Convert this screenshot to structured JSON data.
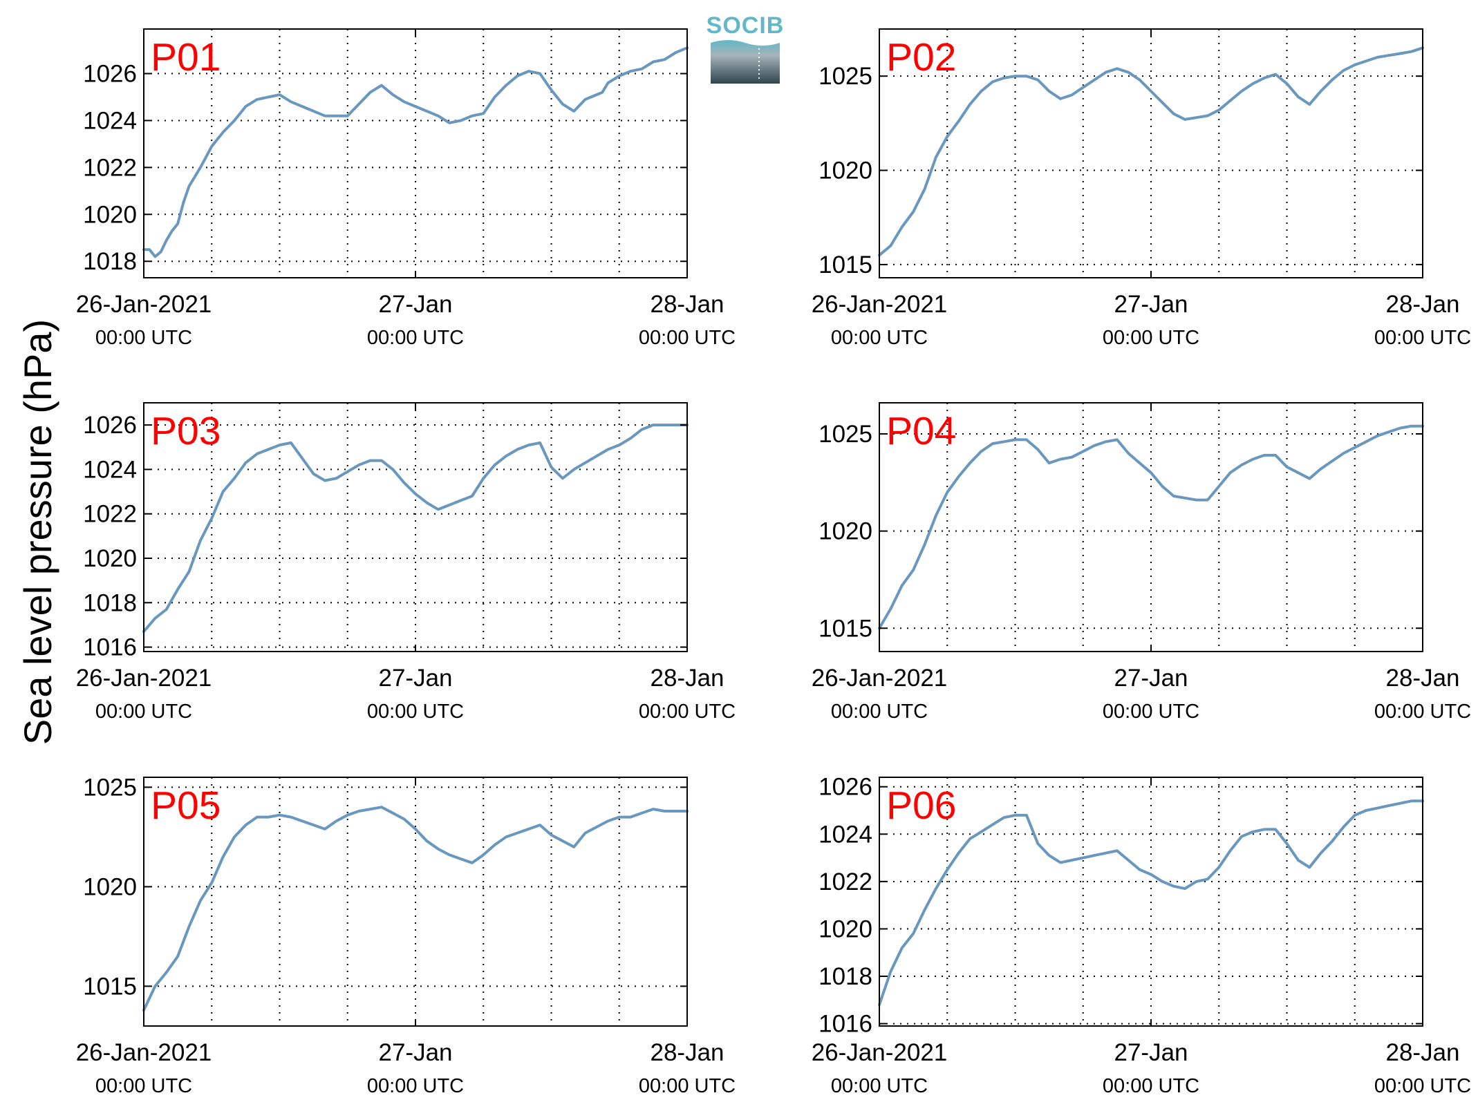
{
  "ylabel": "Sea level pressure (hPa)",
  "logo": {
    "text": "SOCIB",
    "colors": [
      "#62b8c8",
      "#2e4550"
    ]
  },
  "x_ticks": [
    {
      "main": "26-Jan-2021",
      "sub": "00:00 UTC"
    },
    {
      "main": "27-Jan",
      "sub": "00:00 UTC"
    },
    {
      "main": "28-Jan",
      "sub": "00:00 UTC"
    }
  ],
  "line_color": "#6a97bd",
  "label_color": "#ff0000",
  "chart_data": [
    {
      "type": "line",
      "title": "P01",
      "xlim": [
        0,
        48
      ],
      "ylim": [
        1017.3,
        1027.9
      ],
      "yticks": [
        1018,
        1020,
        1022,
        1024,
        1026
      ],
      "x": [
        0,
        0.5,
        1,
        1.5,
        2,
        2.5,
        3,
        3.5,
        4,
        4.5,
        5,
        6,
        7,
        8,
        9,
        10,
        11,
        12,
        13,
        14,
        15,
        16,
        17,
        18,
        19,
        20,
        21,
        22,
        23,
        24,
        25,
        26,
        27,
        28,
        29,
        30,
        31,
        32,
        33,
        34,
        35,
        36,
        37,
        38,
        39,
        40,
        40.5,
        41,
        42,
        43,
        44,
        45,
        46,
        47,
        48
      ],
      "values": [
        1018.5,
        1018.5,
        1018.2,
        1018.4,
        1018.9,
        1019.3,
        1019.6,
        1020.5,
        1021.2,
        1021.6,
        1022.0,
        1022.9,
        1023.5,
        1024.0,
        1024.6,
        1024.9,
        1025.0,
        1025.1,
        1024.8,
        1024.6,
        1024.4,
        1024.2,
        1024.2,
        1024.2,
        1024.7,
        1025.2,
        1025.5,
        1025.1,
        1024.8,
        1024.6,
        1024.4,
        1024.2,
        1023.9,
        1024.0,
        1024.2,
        1024.3,
        1025.0,
        1025.5,
        1025.9,
        1026.1,
        1026.0,
        1025.3,
        1024.7,
        1024.4,
        1024.9,
        1025.1,
        1025.2,
        1025.6,
        1025.9,
        1026.1,
        1026.2,
        1026.5,
        1026.6,
        1026.9,
        1027.1
      ]
    },
    {
      "type": "line",
      "title": "P02",
      "xlim": [
        0,
        48
      ],
      "ylim": [
        1014.3,
        1027.5
      ],
      "yticks": [
        1015,
        1020,
        1025
      ],
      "x": [
        0,
        1,
        2,
        3,
        4,
        5,
        6,
        7,
        8,
        9,
        10,
        11,
        12,
        13,
        14,
        15,
        16,
        17,
        18,
        19,
        20,
        21,
        22,
        23,
        24,
        25,
        26,
        27,
        28,
        29,
        30,
        31,
        32,
        33,
        34,
        35,
        36,
        37,
        38,
        39,
        40,
        41,
        42,
        43,
        44,
        45,
        46,
        47,
        48
      ],
      "values": [
        1015.5,
        1016.0,
        1017.0,
        1017.8,
        1019.0,
        1020.7,
        1021.8,
        1022.6,
        1023.5,
        1024.2,
        1024.7,
        1024.9,
        1025.0,
        1025.0,
        1024.8,
        1024.2,
        1023.8,
        1024.0,
        1024.4,
        1024.8,
        1025.2,
        1025.4,
        1025.2,
        1024.8,
        1024.2,
        1023.6,
        1023.0,
        1022.7,
        1022.8,
        1022.9,
        1023.2,
        1023.7,
        1024.2,
        1024.6,
        1024.9,
        1025.1,
        1024.6,
        1023.9,
        1023.5,
        1024.2,
        1024.8,
        1025.3,
        1025.6,
        1025.8,
        1026.0,
        1026.1,
        1026.2,
        1026.3,
        1026.5
      ]
    },
    {
      "type": "line",
      "title": "P03",
      "xlim": [
        0,
        48
      ],
      "ylim": [
        1015.8,
        1027.0
      ],
      "yticks": [
        1016,
        1018,
        1020,
        1022,
        1024,
        1026
      ],
      "x": [
        0,
        1,
        2,
        3,
        4,
        5,
        6,
        7,
        8,
        9,
        10,
        11,
        12,
        13,
        14,
        15,
        16,
        17,
        18,
        19,
        20,
        21,
        22,
        23,
        24,
        25,
        26,
        27,
        28,
        29,
        30,
        31,
        32,
        33,
        34,
        35,
        36,
        37,
        38,
        39,
        40,
        41,
        42,
        43,
        44,
        45,
        46,
        47,
        48
      ],
      "values": [
        1016.7,
        1017.3,
        1017.7,
        1018.6,
        1019.4,
        1020.8,
        1021.8,
        1023.0,
        1023.6,
        1024.3,
        1024.7,
        1024.9,
        1025.1,
        1025.2,
        1024.5,
        1023.8,
        1023.5,
        1023.6,
        1023.9,
        1024.2,
        1024.4,
        1024.4,
        1024.0,
        1023.4,
        1022.9,
        1022.5,
        1022.2,
        1022.4,
        1022.6,
        1022.8,
        1023.6,
        1024.2,
        1024.6,
        1024.9,
        1025.1,
        1025.2,
        1024.1,
        1023.6,
        1024.0,
        1024.3,
        1024.6,
        1024.9,
        1025.1,
        1025.4,
        1025.8,
        1026.0,
        1026.0,
        1026.0,
        1026.0
      ]
    },
    {
      "type": "line",
      "title": "P04",
      "xlim": [
        0,
        48
      ],
      "ylim": [
        1013.8,
        1026.6
      ],
      "yticks": [
        1015,
        1020,
        1025
      ],
      "x": [
        0,
        1,
        2,
        3,
        4,
        5,
        6,
        7,
        8,
        9,
        10,
        11,
        12,
        13,
        14,
        15,
        16,
        17,
        18,
        19,
        20,
        21,
        22,
        23,
        24,
        25,
        26,
        27,
        28,
        29,
        30,
        31,
        32,
        33,
        34,
        35,
        36,
        37,
        38,
        39,
        40,
        41,
        42,
        43,
        44,
        45,
        46,
        47,
        48
      ],
      "values": [
        1015.0,
        1016.0,
        1017.2,
        1018.0,
        1019.3,
        1020.8,
        1022.0,
        1022.8,
        1023.5,
        1024.1,
        1024.5,
        1024.6,
        1024.7,
        1024.7,
        1024.2,
        1023.5,
        1023.7,
        1023.8,
        1024.1,
        1024.4,
        1024.6,
        1024.7,
        1024.0,
        1023.5,
        1023.0,
        1022.3,
        1021.8,
        1021.7,
        1021.6,
        1021.6,
        1022.3,
        1023.0,
        1023.4,
        1023.7,
        1023.9,
        1023.9,
        1023.3,
        1023.0,
        1022.7,
        1023.2,
        1023.6,
        1024.0,
        1024.3,
        1024.6,
        1024.9,
        1025.1,
        1025.3,
        1025.4,
        1025.4
      ]
    },
    {
      "type": "line",
      "title": "P05",
      "xlim": [
        0,
        48
      ],
      "ylim": [
        1013.0,
        1025.5
      ],
      "yticks": [
        1015,
        1020,
        1025
      ],
      "x": [
        0,
        1,
        2,
        3,
        4,
        5,
        6,
        7,
        8,
        9,
        10,
        11,
        12,
        13,
        14,
        15,
        16,
        17,
        18,
        19,
        20,
        21,
        22,
        23,
        24,
        25,
        26,
        27,
        28,
        29,
        30,
        31,
        32,
        33,
        34,
        35,
        36,
        37,
        38,
        39,
        40,
        41,
        42,
        43,
        44,
        45,
        46,
        47,
        48
      ],
      "values": [
        1013.8,
        1015.0,
        1015.7,
        1016.5,
        1018.0,
        1019.3,
        1020.2,
        1021.5,
        1022.5,
        1023.1,
        1023.5,
        1023.5,
        1023.6,
        1023.5,
        1023.3,
        1023.1,
        1022.9,
        1023.3,
        1023.6,
        1023.8,
        1023.9,
        1024.0,
        1023.7,
        1023.4,
        1022.9,
        1022.3,
        1021.9,
        1021.6,
        1021.4,
        1021.2,
        1021.6,
        1022.1,
        1022.5,
        1022.7,
        1022.9,
        1023.1,
        1022.6,
        1022.3,
        1022.0,
        1022.7,
        1023.0,
        1023.3,
        1023.5,
        1023.5,
        1023.7,
        1023.9,
        1023.8,
        1023.8,
        1023.8
      ]
    },
    {
      "type": "line",
      "title": "P06",
      "xlim": [
        0,
        48
      ],
      "ylim": [
        1015.9,
        1026.4
      ],
      "yticks": [
        1016,
        1018,
        1020,
        1022,
        1024,
        1026
      ],
      "x": [
        0,
        1,
        2,
        3,
        4,
        5,
        6,
        7,
        8,
        9,
        10,
        11,
        12,
        13,
        14,
        15,
        16,
        17,
        18,
        19,
        20,
        21,
        22,
        23,
        24,
        25,
        26,
        27,
        28,
        29,
        30,
        31,
        32,
        33,
        34,
        35,
        36,
        37,
        38,
        39,
        40,
        41,
        42,
        43,
        44,
        45,
        46,
        47,
        48
      ],
      "values": [
        1016.8,
        1018.2,
        1019.2,
        1019.8,
        1020.8,
        1021.7,
        1022.5,
        1023.2,
        1023.8,
        1024.1,
        1024.4,
        1024.7,
        1024.8,
        1024.8,
        1023.6,
        1023.1,
        1022.8,
        1022.9,
        1023.0,
        1023.1,
        1023.2,
        1023.3,
        1022.9,
        1022.5,
        1022.3,
        1022.0,
        1021.8,
        1021.7,
        1022.0,
        1022.1,
        1022.6,
        1023.3,
        1023.9,
        1024.1,
        1024.2,
        1024.2,
        1023.6,
        1022.9,
        1022.6,
        1023.2,
        1023.7,
        1024.3,
        1024.8,
        1025.0,
        1025.1,
        1025.2,
        1025.3,
        1025.4,
        1025.4
      ]
    }
  ]
}
